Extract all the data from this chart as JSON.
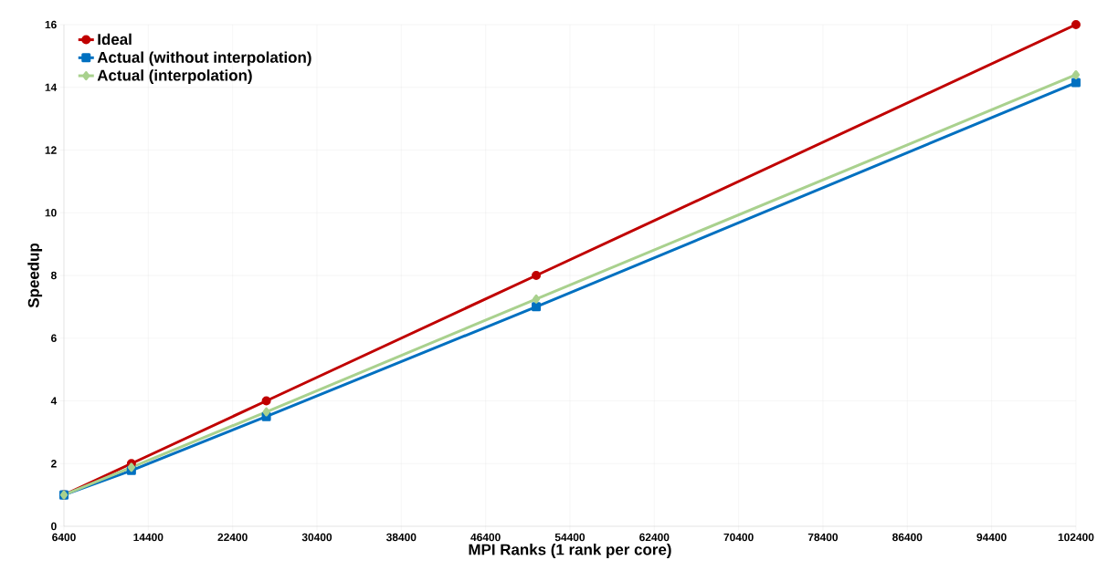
{
  "chart_data": {
    "type": "line",
    "xlabel": "MPI Ranks (1 rank per core)",
    "ylabel": "Speedup",
    "x": [
      6400,
      12800,
      25600,
      51200,
      102400
    ],
    "series": [
      {
        "name": "Ideal",
        "color": "#c00000",
        "marker": "circle",
        "values": [
          1,
          2,
          4,
          8,
          16
        ]
      },
      {
        "name": "Actual (without interpolation)",
        "color": "#0070c0",
        "marker": "square",
        "values": [
          1,
          1.78,
          3.5,
          7.0,
          14.15
        ]
      },
      {
        "name": "Actual (interpolation)",
        "color": "#a9d18e",
        "marker": "diamond",
        "values": [
          1,
          1.88,
          3.65,
          7.25,
          14.4
        ]
      }
    ],
    "xlim": [
      6400,
      102400
    ],
    "xticks": [
      6400,
      14400,
      22400,
      30400,
      38400,
      46400,
      54400,
      62400,
      70400,
      78400,
      86400,
      94400,
      102400
    ],
    "ylim": [
      0,
      16
    ],
    "yticks": [
      0,
      2,
      4,
      6,
      8,
      10,
      12,
      14,
      16
    ],
    "grid": true,
    "legend": "top left",
    "line_style": "solid"
  }
}
